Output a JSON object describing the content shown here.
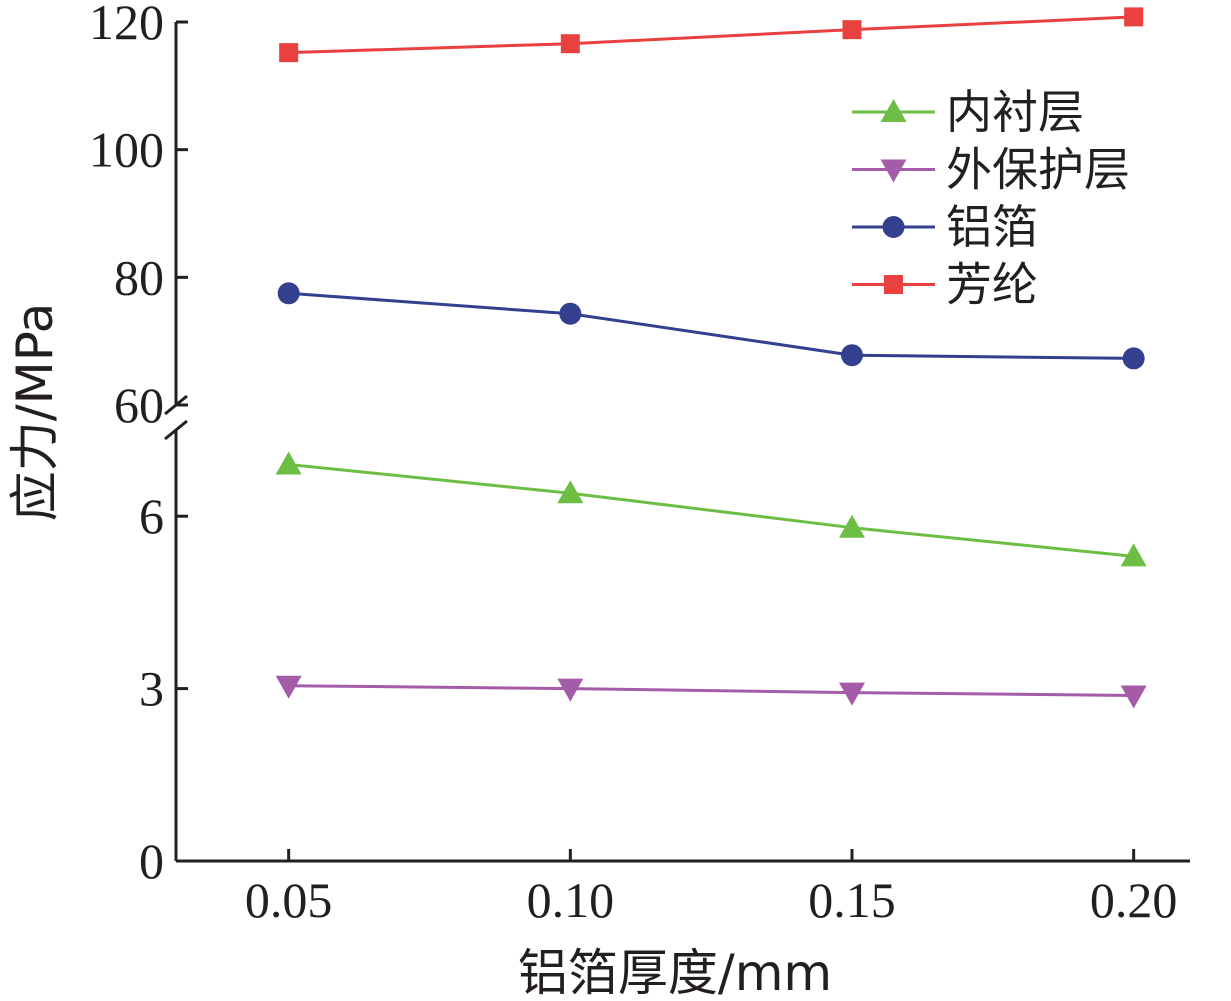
{
  "chart_data": {
    "type": "line",
    "xlabel": "铝箔厚度/mm",
    "ylabel": "应力/MPa",
    "x": [
      0.05,
      0.1,
      0.15,
      0.2
    ],
    "x_tick_labels": [
      "0.05",
      "0.10",
      "0.15",
      "0.20"
    ],
    "xlim": [
      0.03,
      0.21
    ],
    "y_axis_break": {
      "lower_range": [
        0,
        7.5
      ],
      "upper_range": [
        60,
        120
      ],
      "lower_ticks": [
        "0",
        "3",
        "6"
      ],
      "upper_ticks": [
        "60",
        "80",
        "100",
        "120"
      ]
    },
    "legend_position": "upper-right",
    "grid": false,
    "series": [
      {
        "name": "内衬层",
        "marker": "triangle-up",
        "color": "#6cbe45",
        "values": [
          6.9,
          6.4,
          5.8,
          5.3
        ]
      },
      {
        "name": "外保护层",
        "marker": "triangle-down",
        "color": "#a45ca8",
        "values": [
          3.05,
          3.0,
          2.93,
          2.88
        ]
      },
      {
        "name": "铝箔",
        "marker": "circle",
        "color": "#333f8f",
        "values": [
          77.5,
          74.3,
          67.8,
          67.3
        ]
      },
      {
        "name": "芳纶",
        "marker": "square",
        "color": "#e84140",
        "values": [
          115.2,
          116.6,
          118.8,
          120.8
        ]
      }
    ]
  }
}
